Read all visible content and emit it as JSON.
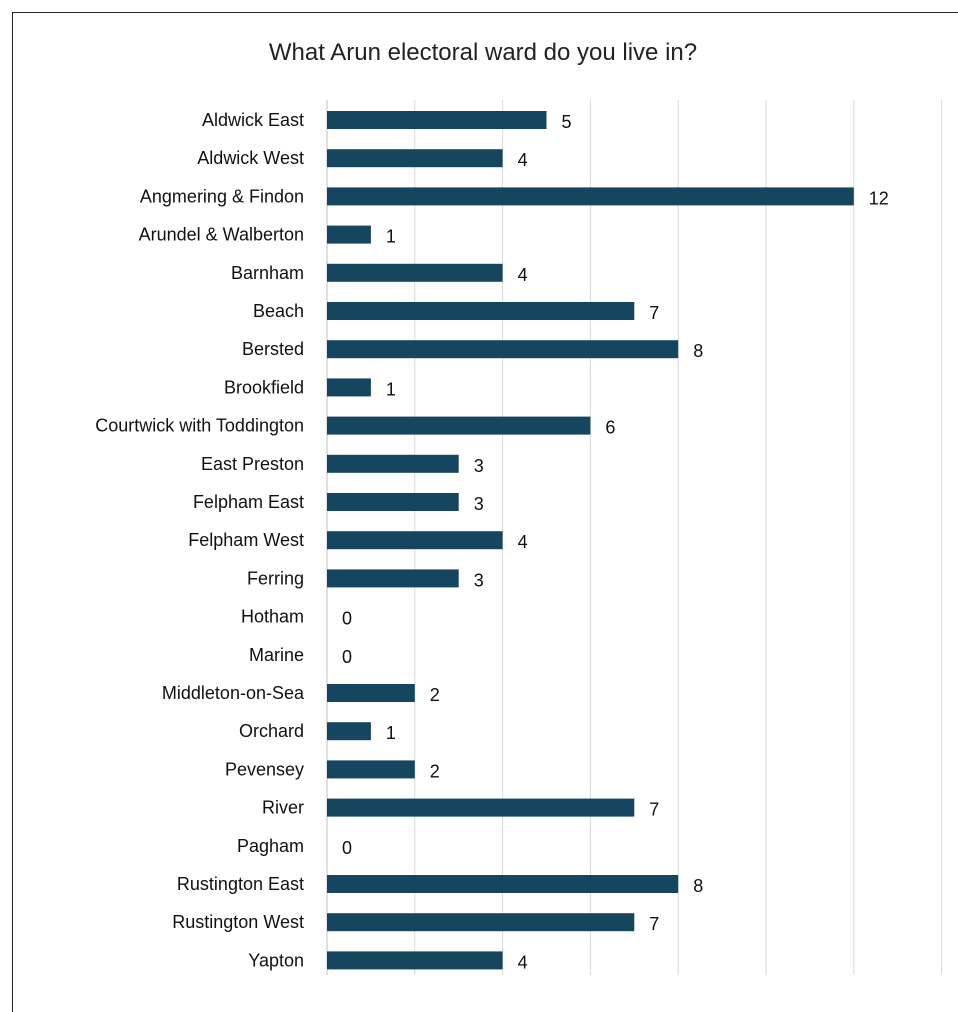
{
  "chart_data": {
    "type": "bar",
    "orientation": "horizontal",
    "title": "What Arun electoral ward do you live in?",
    "xlabel": "",
    "ylabel": "",
    "xlim": [
      0,
      14
    ],
    "grid": true,
    "bar_color": "#16465f",
    "categories": [
      "Aldwick East",
      "Aldwick West",
      "Angmering & Findon",
      "Arundel & Walberton",
      "Barnham",
      "Beach",
      "Bersted",
      "Brookfield",
      "Courtwick with Toddington",
      "East Preston",
      "Felpham East",
      "Felpham West",
      "Ferring",
      "Hotham",
      "Marine",
      "Middleton-on-Sea",
      "Orchard",
      "Pevensey",
      "River",
      "Pagham",
      "Rustington East",
      "Rustington West",
      "Yapton"
    ],
    "values": [
      5,
      4,
      12,
      1,
      4,
      7,
      8,
      1,
      6,
      3,
      3,
      4,
      3,
      0,
      0,
      2,
      1,
      2,
      7,
      0,
      8,
      7,
      4
    ]
  }
}
